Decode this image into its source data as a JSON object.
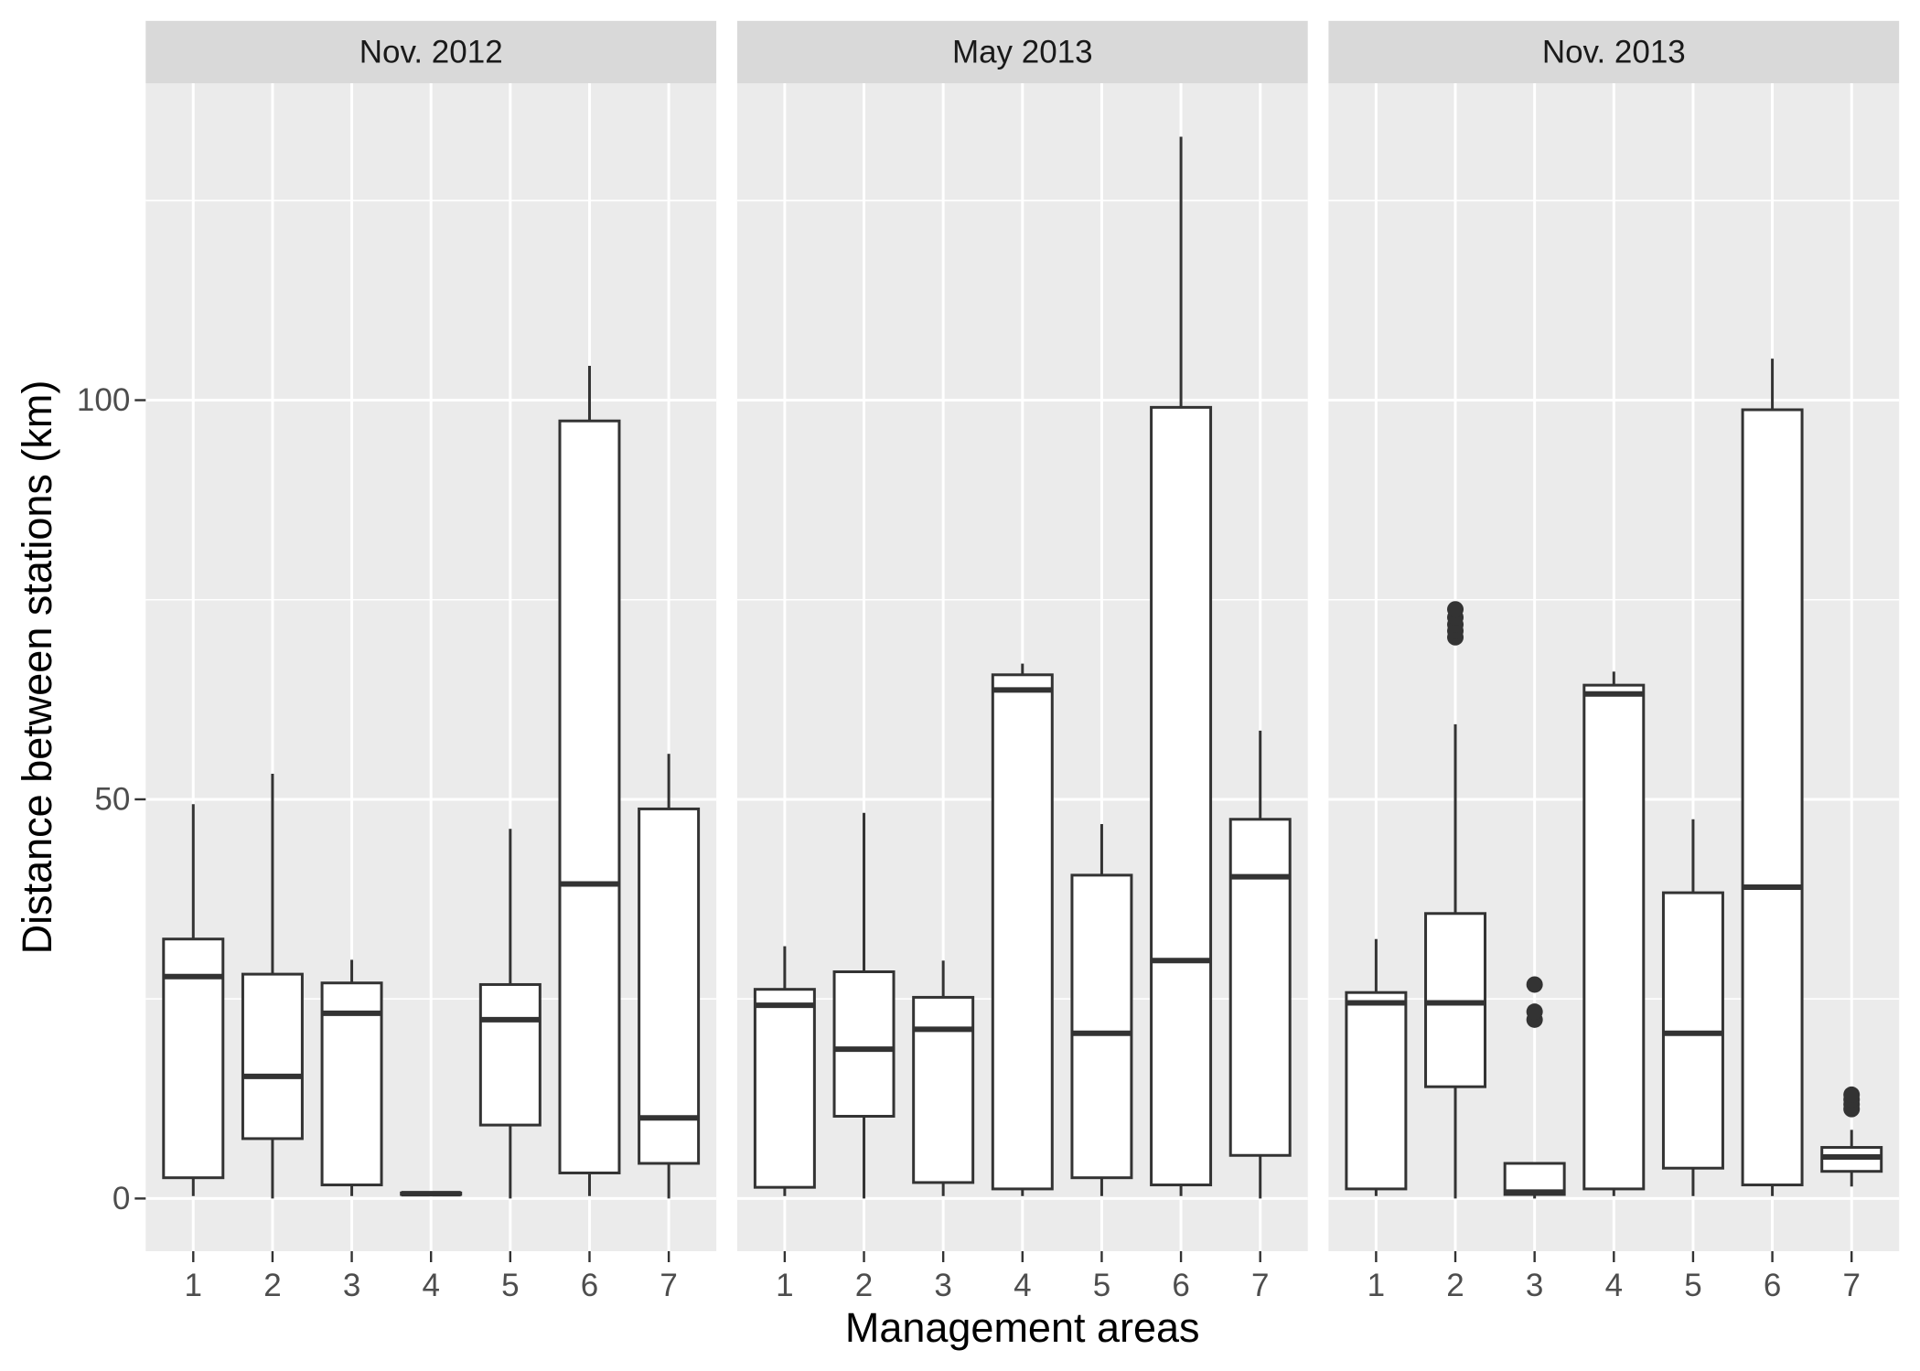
{
  "chart_data": {
    "type": "boxplot",
    "xlabel": "Management areas",
    "ylabel": "Distance between stations (km)",
    "ylim": [
      -6.6,
      139.7
    ],
    "yticks": [
      0,
      50,
      100
    ],
    "y_minor_gridlines": [
      25,
      75,
      125
    ],
    "grid": true,
    "legend": "none",
    "categories": [
      "1",
      "2",
      "3",
      "4",
      "5",
      "6",
      "7"
    ],
    "colors": {
      "panel_background": "#EBEBEB",
      "strip_background": "#D9D9D9",
      "gridline": "#FFFFFF",
      "box_fill": "#FFFFFF",
      "box_line": "#333333",
      "axis_tick": "#333333"
    },
    "facets": [
      {
        "label": "Nov. 2012",
        "boxes": [
          {
            "category": "1",
            "whisker_low": 0.3,
            "q1": 2.6,
            "median": 27.8,
            "q3": 32.5,
            "whisker_high": 49.4,
            "outliers": []
          },
          {
            "category": "2",
            "whisker_low": 0.0,
            "q1": 7.5,
            "median": 15.3,
            "q3": 28.1,
            "whisker_high": 53.2,
            "outliers": []
          },
          {
            "category": "3",
            "whisker_low": 0.3,
            "q1": 1.7,
            "median": 23.2,
            "q3": 27.0,
            "whisker_high": 29.9,
            "outliers": []
          },
          {
            "category": "4",
            "whisker_low": 0.4,
            "q1": 0.5,
            "median": 0.6,
            "q3": 0.7,
            "whisker_high": 0.8,
            "outliers": []
          },
          {
            "category": "5",
            "whisker_low": 0.0,
            "q1": 9.2,
            "median": 22.4,
            "q3": 26.8,
            "whisker_high": 46.3,
            "outliers": []
          },
          {
            "category": "6",
            "whisker_low": 0.3,
            "q1": 3.2,
            "median": 39.4,
            "q3": 97.4,
            "whisker_high": 104.3,
            "outliers": []
          },
          {
            "category": "7",
            "whisker_low": 0.0,
            "q1": 4.4,
            "median": 10.1,
            "q3": 48.8,
            "whisker_high": 55.7,
            "outliers": []
          }
        ]
      },
      {
        "label": "May 2013",
        "boxes": [
          {
            "category": "1",
            "whisker_low": 0.3,
            "q1": 1.4,
            "median": 24.2,
            "q3": 26.2,
            "whisker_high": 31.6,
            "outliers": []
          },
          {
            "category": "2",
            "whisker_low": 0.0,
            "q1": 10.3,
            "median": 18.7,
            "q3": 28.4,
            "whisker_high": 48.3,
            "outliers": []
          },
          {
            "category": "3",
            "whisker_low": 0.3,
            "q1": 2.0,
            "median": 21.2,
            "q3": 25.2,
            "whisker_high": 29.8,
            "outliers": []
          },
          {
            "category": "4",
            "whisker_low": 0.3,
            "q1": 1.2,
            "median": 63.7,
            "q3": 65.6,
            "whisker_high": 67.0,
            "outliers": []
          },
          {
            "category": "5",
            "whisker_low": 0.3,
            "q1": 2.6,
            "median": 20.7,
            "q3": 40.5,
            "whisker_high": 46.9,
            "outliers": []
          },
          {
            "category": "6",
            "whisker_low": 0.3,
            "q1": 1.7,
            "median": 29.8,
            "q3": 99.1,
            "whisker_high": 133.0,
            "outliers": []
          },
          {
            "category": "7",
            "whisker_low": 0.0,
            "q1": 5.4,
            "median": 40.3,
            "q3": 47.5,
            "whisker_high": 58.6,
            "outliers": []
          }
        ]
      },
      {
        "label": "Nov. 2013",
        "boxes": [
          {
            "category": "1",
            "whisker_low": 0.3,
            "q1": 1.2,
            "median": 24.5,
            "q3": 25.8,
            "whisker_high": 32.5,
            "outliers": []
          },
          {
            "category": "2",
            "whisker_low": 0.0,
            "q1": 14.0,
            "median": 24.5,
            "q3": 35.7,
            "whisker_high": 59.4,
            "outliers": [
              70.3,
              71.1,
              71.9,
              72.8,
              73.8
            ]
          },
          {
            "category": "3",
            "whisker_low": 0.0,
            "q1": 0.5,
            "median": 0.8,
            "q3": 4.4,
            "whisker_high": 4.4,
            "outliers": [
              22.4,
              23.4,
              26.8
            ]
          },
          {
            "category": "4",
            "whisker_low": 0.3,
            "q1": 1.2,
            "median": 63.2,
            "q3": 64.3,
            "whisker_high": 66.0,
            "outliers": []
          },
          {
            "category": "5",
            "whisker_low": 0.3,
            "q1": 3.8,
            "median": 20.7,
            "q3": 38.3,
            "whisker_high": 47.5,
            "outliers": []
          },
          {
            "category": "6",
            "whisker_low": 0.3,
            "q1": 1.7,
            "median": 39.0,
            "q3": 98.8,
            "whisker_high": 105.2,
            "outliers": []
          },
          {
            "category": "7",
            "whisker_low": 1.5,
            "q1": 3.4,
            "median": 5.2,
            "q3": 6.4,
            "whisker_high": 8.6,
            "outliers": [
              11.2,
              11.8,
              12.4,
              13.0
            ]
          }
        ]
      }
    ]
  }
}
